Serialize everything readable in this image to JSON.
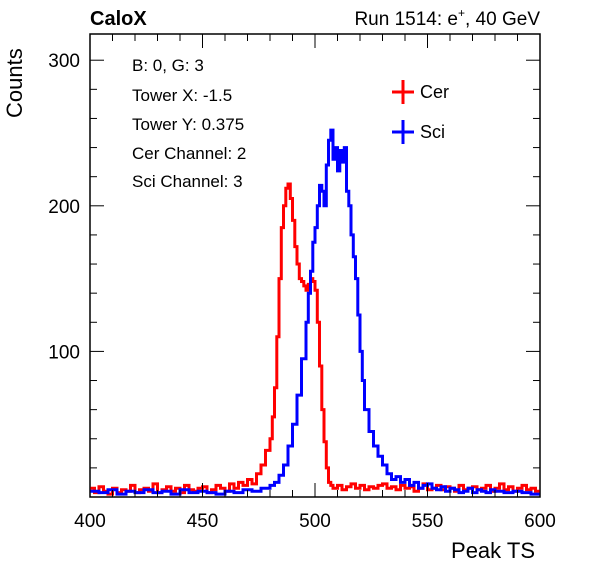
{
  "header": {
    "left": "CaloX",
    "right_prefix": "Run 1514: e",
    "right_sup": "+",
    "right_suffix": ", 40 GeV"
  },
  "info_box": {
    "lines": [
      "B: 0, G: 3",
      "Tower X: -1.5",
      "Tower Y: 0.375",
      "Cer Channel: 2",
      "Sci Channel: 3"
    ]
  },
  "chart_data": {
    "type": "line",
    "xlabel": "Peak TS",
    "ylabel": "Counts",
    "xlim": [
      400,
      600
    ],
    "ylim": [
      0,
      318
    ],
    "xticks": [
      "400",
      "450",
      "500",
      "550",
      "600"
    ],
    "yticks": [
      "100",
      "200",
      "300"
    ],
    "grid": false,
    "legend_position": "top-right",
    "series": [
      {
        "name": "Cer",
        "color": "#ff0000",
        "x": [
          400,
          402,
          404,
          406,
          408,
          410,
          412,
          414,
          416,
          418,
          420,
          422,
          424,
          426,
          428,
          430,
          432,
          434,
          436,
          438,
          440,
          442,
          444,
          446,
          448,
          450,
          452,
          454,
          456,
          458,
          460,
          462,
          464,
          466,
          468,
          470,
          472,
          474,
          476,
          478,
          480,
          481,
          482,
          483,
          484,
          485,
          486,
          487,
          488,
          489,
          490,
          491,
          492,
          493,
          494,
          495,
          496,
          497,
          498,
          499,
          500,
          501,
          502,
          503,
          504,
          505,
          506,
          507,
          508,
          510,
          512,
          514,
          516,
          518,
          520,
          522,
          524,
          526,
          528,
          530,
          532,
          534,
          536,
          538,
          540,
          542,
          544,
          546,
          548,
          550,
          552,
          554,
          556,
          558,
          560,
          562,
          564,
          566,
          568,
          570,
          572,
          574,
          576,
          578,
          580,
          582,
          584,
          586,
          588,
          590,
          592,
          594,
          596,
          598
        ],
        "values": [
          6,
          3,
          7,
          4,
          2,
          6,
          3,
          5,
          4,
          8,
          3,
          5,
          6,
          4,
          9,
          3,
          5,
          7,
          4,
          6,
          3,
          8,
          5,
          4,
          6,
          7,
          3,
          5,
          8,
          6,
          4,
          9,
          6,
          10,
          8,
          12,
          9,
          16,
          22,
          32,
          40,
          55,
          75,
          110,
          150,
          185,
          200,
          212,
          215,
          205,
          190,
          172,
          160,
          150,
          148,
          145,
          142,
          146,
          150,
          148,
          142,
          120,
          90,
          60,
          38,
          20,
          10,
          8,
          6,
          8,
          5,
          7,
          9,
          6,
          8,
          5,
          7,
          6,
          8,
          9,
          6,
          7,
          5,
          8,
          6,
          7,
          4,
          6,
          9,
          5,
          6,
          8,
          5,
          7,
          6,
          4,
          8,
          5,
          6,
          7,
          5,
          6,
          8,
          4,
          6,
          9,
          5,
          7,
          4,
          6,
          8,
          5,
          6,
          4
        ]
      },
      {
        "name": "Sci",
        "color": "#0000ff",
        "x": [
          400,
          404,
          408,
          412,
          416,
          420,
          424,
          428,
          432,
          436,
          440,
          444,
          448,
          452,
          456,
          460,
          464,
          468,
          472,
          476,
          480,
          482,
          484,
          486,
          488,
          490,
          492,
          494,
          496,
          497,
          498,
          499,
          500,
          501,
          502,
          503,
          504,
          505,
          506,
          507,
          508,
          509,
          510,
          511,
          512,
          513,
          514,
          515,
          516,
          517,
          518,
          519,
          520,
          521,
          522,
          524,
          526,
          528,
          530,
          532,
          534,
          536,
          538,
          540,
          542,
          544,
          546,
          548,
          550,
          552,
          554,
          556,
          558,
          560,
          562,
          564,
          566,
          568,
          570,
          572,
          574,
          576,
          578,
          580,
          584,
          588,
          592,
          596
        ],
        "values": [
          4,
          3,
          5,
          2,
          4,
          3,
          5,
          3,
          4,
          2,
          5,
          3,
          4,
          3,
          2,
          4,
          3,
          5,
          4,
          6,
          8,
          10,
          15,
          22,
          35,
          50,
          70,
          95,
          120,
          140,
          155,
          175,
          185,
          200,
          214,
          210,
          200,
          228,
          245,
          252,
          232,
          240,
          224,
          238,
          230,
          240,
          210,
          200,
          180,
          165,
          150,
          125,
          100,
          80,
          60,
          45,
          35,
          28,
          22,
          16,
          12,
          14,
          10,
          12,
          8,
          10,
          6,
          8,
          9,
          6,
          5,
          7,
          4,
          6,
          5,
          3,
          4,
          6,
          3,
          5,
          4,
          3,
          5,
          4,
          3,
          4,
          3,
          2
        ]
      }
    ]
  }
}
